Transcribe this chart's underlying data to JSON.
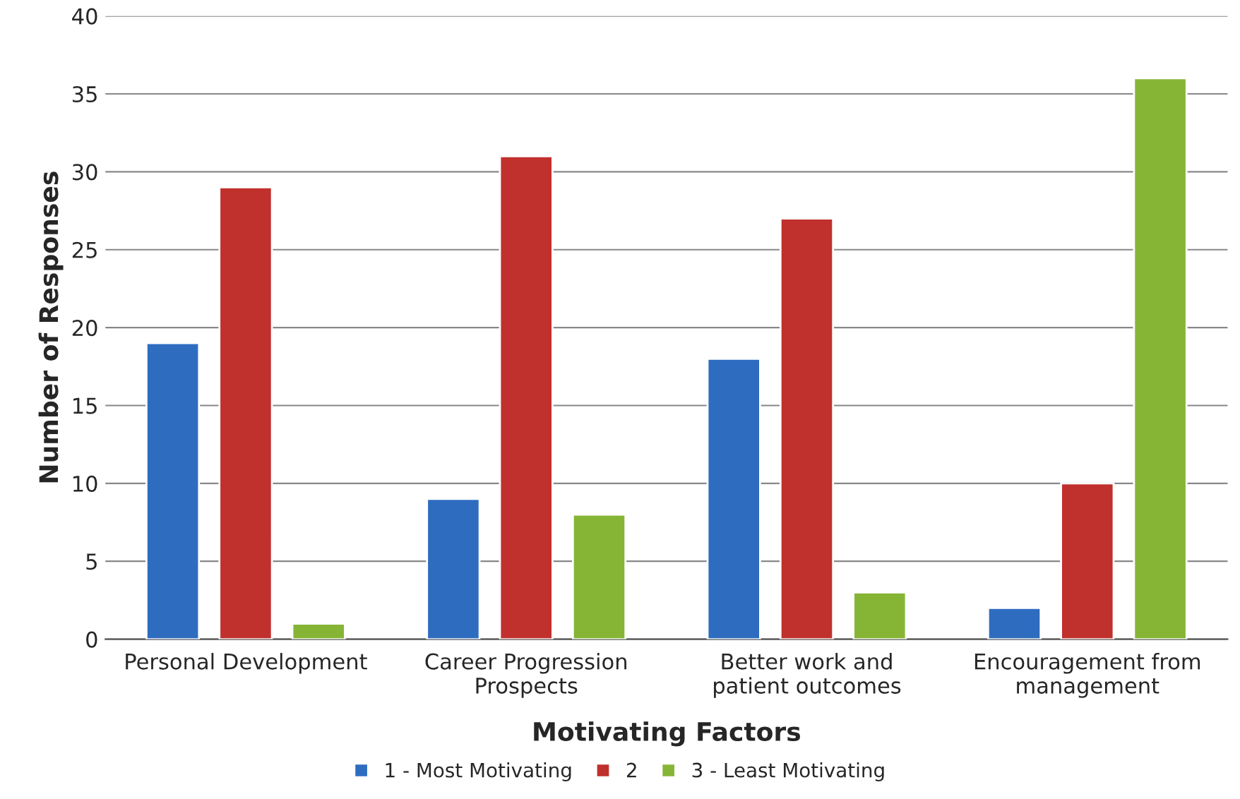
{
  "chart_data": {
    "type": "bar",
    "xlabel": "Motivating Factors",
    "ylabel": "Number of Responses",
    "categories": [
      "Personal Development",
      "Career Progression Prospects",
      "Better work and patient outcomes",
      "Encouragement from management"
    ],
    "series": [
      {
        "name": "1 - Most Motivating",
        "color": "#2e6cc0",
        "values": [
          19,
          9,
          18,
          2
        ]
      },
      {
        "name": "2",
        "color": "#c0302d",
        "values": [
          29,
          31,
          27,
          10
        ]
      },
      {
        "name": "3 - Least Motivating",
        "color": "#86b535",
        "values": [
          1,
          8,
          3,
          36
        ]
      }
    ],
    "ylim": [
      0,
      40
    ],
    "yticks": [
      0,
      5,
      10,
      15,
      20,
      25,
      30,
      35,
      40
    ],
    "grid": "y",
    "legend": "bottom"
  }
}
